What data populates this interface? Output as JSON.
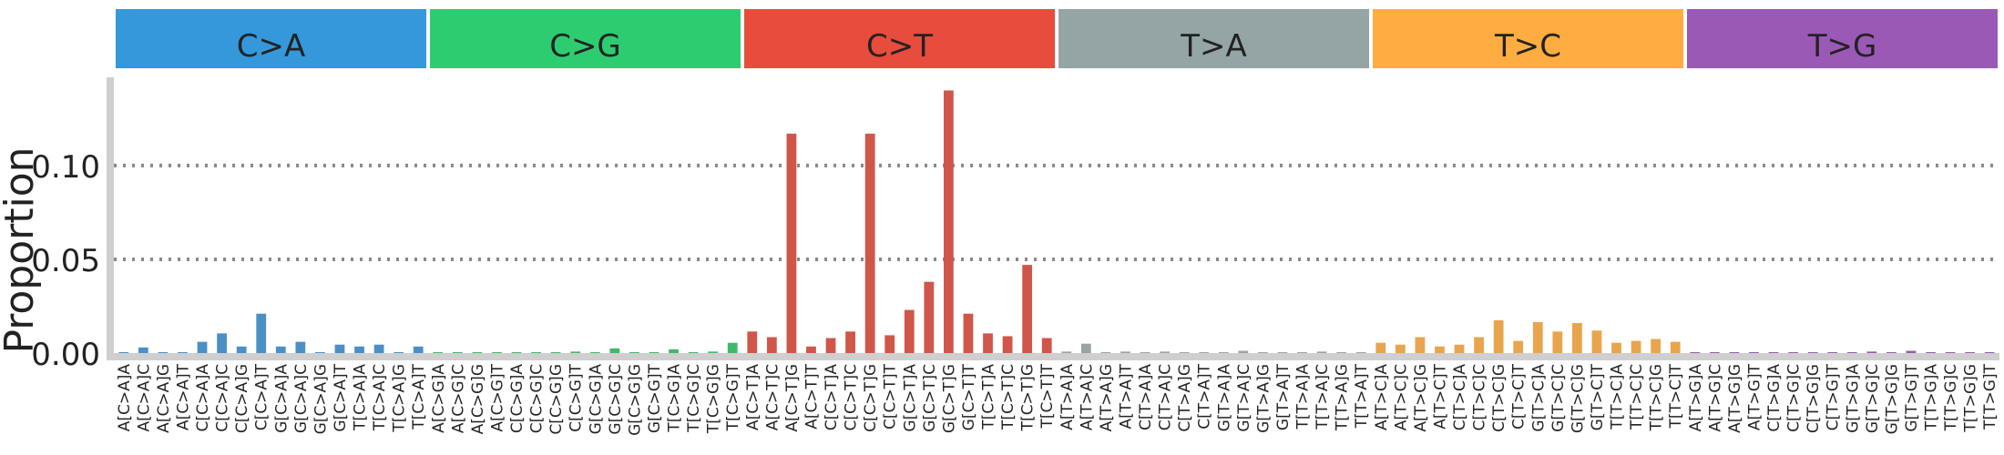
{
  "chart_data": {
    "type": "bar",
    "ylabel": "Proportion",
    "ylim": [
      0,
      0.147
    ],
    "yticks": [
      0.0,
      0.05,
      0.1
    ],
    "ytick_labels": [
      "0.00",
      "0.05",
      "0.10"
    ],
    "grid": "horizontal dotted at 0.05 and 0.10",
    "groups": [
      {
        "label": "C>A",
        "color": "#3498db"
      },
      {
        "label": "C>G",
        "color": "#2ecc71"
      },
      {
        "label": "C>T",
        "color": "#e74c3c"
      },
      {
        "label": "T>A",
        "color": "#95a5a6"
      },
      {
        "label": "T>C",
        "color": "#ffad40"
      },
      {
        "label": "T>G",
        "color": "#9b59b6"
      }
    ],
    "bar_colors": [
      "#4a90c6",
      "#3fb96a",
      "#d0564a",
      "#9aa3a4",
      "#e9a54d",
      "#8f5fa9"
    ],
    "categories": [
      "A[C>A]A",
      "A[C>A]C",
      "A[C>A]G",
      "A[C>A]T",
      "C[C>A]A",
      "C[C>A]C",
      "C[C>A]G",
      "C[C>A]T",
      "G[C>A]A",
      "G[C>A]C",
      "G[C>A]G",
      "G[C>A]T",
      "T[C>A]A",
      "T[C>A]C",
      "T[C>A]G",
      "T[C>A]T",
      "A[C>G]A",
      "A[C>G]C",
      "A[C>G]G",
      "A[C>G]T",
      "C[C>G]A",
      "C[C>G]C",
      "C[C>G]G",
      "C[C>G]T",
      "G[C>G]A",
      "G[C>G]C",
      "G[C>G]G",
      "G[C>G]T",
      "T[C>G]A",
      "T[C>G]C",
      "T[C>G]G",
      "T[C>G]T",
      "A[C>T]A",
      "A[C>T]C",
      "A[C>T]G",
      "A[C>T]T",
      "C[C>T]A",
      "C[C>T]C",
      "C[C>T]G",
      "C[C>T]T",
      "G[C>T]A",
      "G[C>T]C",
      "G[C>T]G",
      "G[C>T]T",
      "T[C>T]A",
      "T[C>T]C",
      "T[C>T]G",
      "T[C>T]T",
      "A[T>A]A",
      "A[T>A]C",
      "A[T>A]G",
      "A[T>A]T",
      "C[T>A]A",
      "C[T>A]C",
      "C[T>A]G",
      "C[T>A]T",
      "G[T>A]A",
      "G[T>A]C",
      "G[T>A]G",
      "G[T>A]T",
      "T[T>A]A",
      "T[T>A]C",
      "T[T>A]G",
      "T[T>A]T",
      "A[T>C]A",
      "A[T>C]C",
      "A[T>C]G",
      "A[T>C]T",
      "C[T>C]A",
      "C[T>C]C",
      "C[T>C]G",
      "C[T>C]T",
      "G[T>C]A",
      "G[T>C]C",
      "G[T>C]G",
      "G[T>C]T",
      "T[T>C]A",
      "T[T>C]C",
      "T[T>C]G",
      "T[T>C]T",
      "A[T>G]A",
      "A[T>G]C",
      "A[T>G]G",
      "A[T>G]T",
      "C[T>G]A",
      "C[T>G]C",
      "C[T>G]G",
      "C[T>G]T",
      "G[T>G]A",
      "G[T>G]C",
      "G[T>G]G",
      "G[T>G]T",
      "T[T>G]A",
      "T[T>G]C",
      "T[T>G]G",
      "T[T>G]T"
    ],
    "values": [
      0.0005,
      0.003,
      0.0005,
      0.0005,
      0.006,
      0.0105,
      0.0035,
      0.021,
      0.0035,
      0.006,
      0.0005,
      0.0045,
      0.0035,
      0.0045,
      0.0005,
      0.0035,
      0.0005,
      0.0005,
      0.0005,
      0.0005,
      0.0005,
      0.0005,
      0.0005,
      0.0008,
      0.0005,
      0.0025,
      0.0005,
      0.0005,
      0.002,
      0.0005,
      0.0008,
      0.0055,
      0.0115,
      0.0085,
      0.117,
      0.0035,
      0.008,
      0.0115,
      0.117,
      0.0095,
      0.023,
      0.038,
      0.14,
      0.021,
      0.0105,
      0.009,
      0.047,
      0.008,
      0.0008,
      0.005,
      0.0005,
      0.0008,
      0.0005,
      0.0008,
      0.0005,
      0.0005,
      0.0005,
      0.0012,
      0.0005,
      0.0005,
      0.0005,
      0.0008,
      0.0005,
      0.0005,
      0.0055,
      0.0045,
      0.0085,
      0.0035,
      0.0045,
      0.0085,
      0.0175,
      0.0065,
      0.0165,
      0.0115,
      0.016,
      0.012,
      0.0055,
      0.0065,
      0.0075,
      0.006,
      0.0005,
      0.0005,
      0.0005,
      0.0005,
      0.0005,
      0.0005,
      0.0005,
      0.0005,
      0.0005,
      0.0008,
      0.0005,
      0.0012,
      0.0005,
      0.0005,
      0.0005,
      0.0005
    ]
  }
}
